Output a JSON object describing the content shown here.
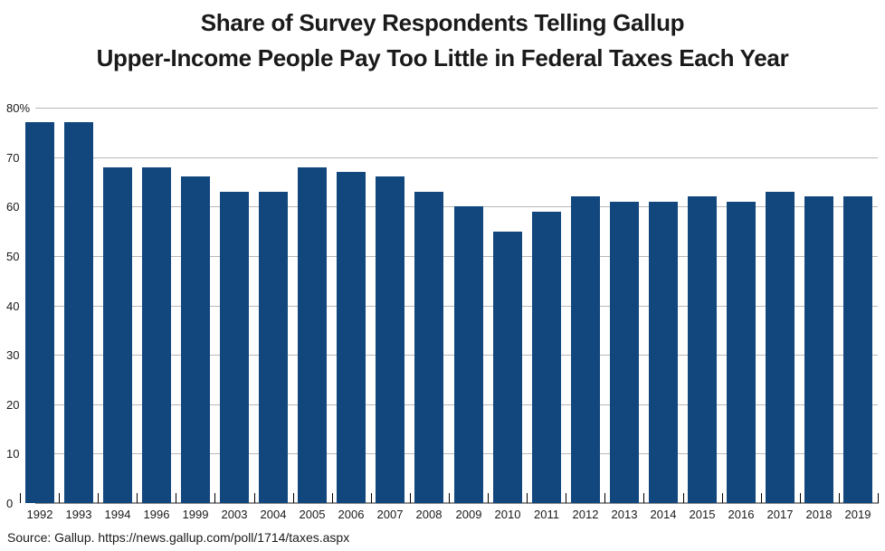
{
  "title": {
    "line1": "Share of Survey Respondents Telling Gallup",
    "line2": "Upper-Income People Pay Too Little in Federal Taxes Each Year"
  },
  "source": "Source: Gallup. https://news.gallup.com/poll/1714/taxes.aspx",
  "colors": {
    "bar": "#12477d",
    "gridline": "#b8b8b8",
    "baseline": "#8f8f8f",
    "tick": "#000000",
    "text": "#1a1a1a"
  },
  "chart_data": {
    "type": "bar",
    "title": "Share of Survey Respondents Telling Gallup Upper-Income People Pay Too Little in Federal Taxes Each Year",
    "categories": [
      "1992",
      "1993",
      "1994",
      "1996",
      "1999",
      "2003",
      "2004",
      "2005",
      "2006",
      "2007",
      "2008",
      "2009",
      "2010",
      "2011",
      "2012",
      "2013",
      "2014",
      "2015",
      "2016",
      "2017",
      "2018",
      "2019"
    ],
    "values": [
      77,
      77,
      68,
      68,
      66,
      63,
      63,
      68,
      67,
      66,
      63,
      60,
      55,
      59,
      62,
      61,
      61,
      62,
      61,
      63,
      62,
      62
    ],
    "xlabel": "",
    "ylabel": "",
    "ylim": [
      0,
      80
    ],
    "yticks": [
      0,
      10,
      20,
      30,
      40,
      50,
      60,
      70,
      80
    ],
    "ytick_labels": [
      "0",
      "10",
      "20",
      "30",
      "40",
      "50",
      "60",
      "70",
      "80%"
    ],
    "grid": true,
    "legend": "none",
    "bar_color": "#12477d"
  }
}
